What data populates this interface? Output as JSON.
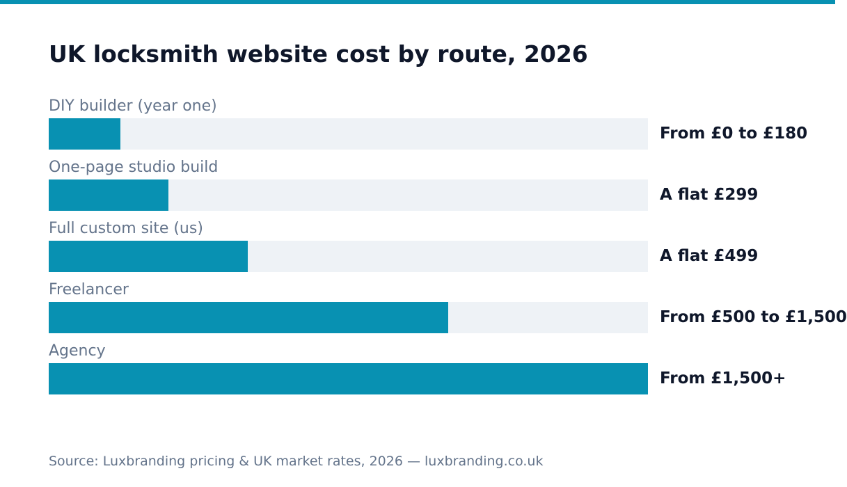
{
  "colors": {
    "accent": "#0891b2",
    "track": "#eef2f6",
    "title": "#0f172a",
    "muted": "#64748b"
  },
  "chart_data": {
    "type": "bar",
    "orientation": "horizontal",
    "title": "UK locksmith website cost by route, 2026",
    "categories": [
      "DIY builder (year one)",
      "One-page studio build",
      "Full custom site (us)",
      "Freelancer",
      "Agency"
    ],
    "values": [
      180,
      299,
      499,
      1000,
      1500
    ],
    "value_labels": [
      "From £0 to £180",
      "A flat £299",
      "A flat £499",
      "From £500 to £1,500",
      "From £1,500+"
    ],
    "xlim": [
      0,
      1500
    ],
    "grid": false,
    "source": "Source: Luxbranding pricing & UK market rates, 2026 — luxbranding.co.uk"
  }
}
